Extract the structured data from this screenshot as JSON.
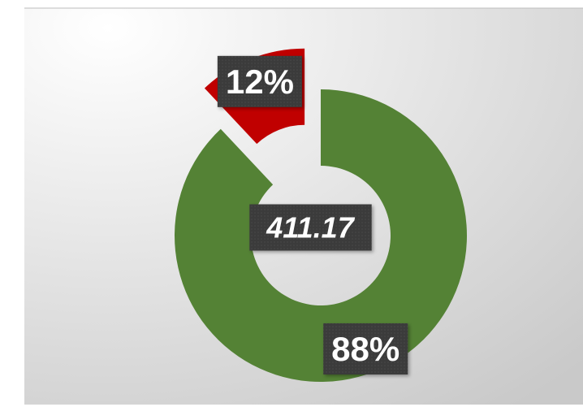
{
  "chart_data": {
    "type": "donut",
    "values": [
      88,
      12
    ],
    "value_labels": [
      "88%",
      "12%"
    ],
    "colors": [
      "#548235",
      "#c00000"
    ],
    "exploded": 1,
    "center_text": "411.17"
  }
}
